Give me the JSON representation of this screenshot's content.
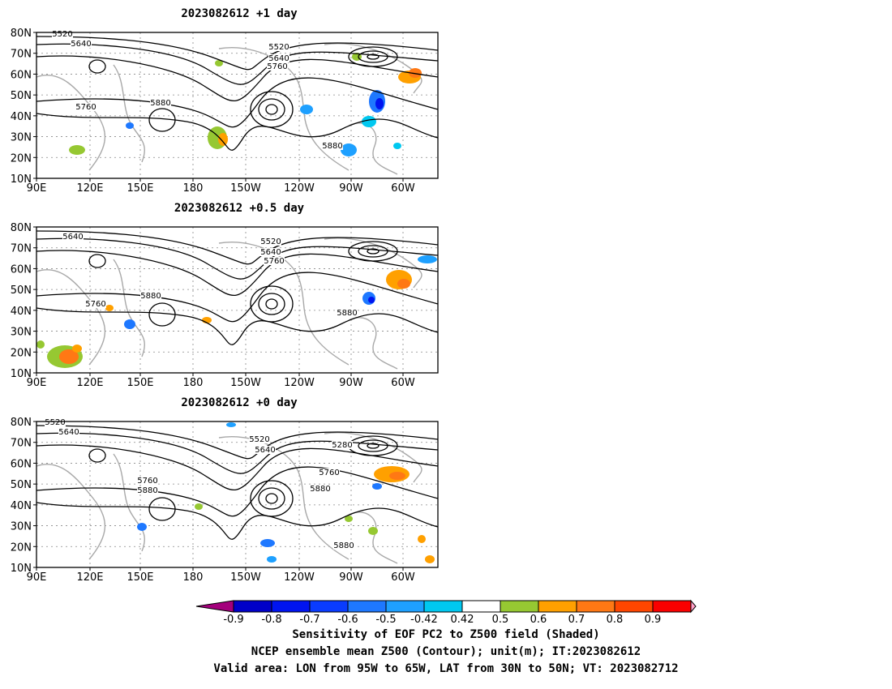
{
  "panels": [
    {
      "title": "2023082612  +1 day",
      "contour_labels": [
        "5520",
        "5640",
        "5520",
        "5640",
        "5760",
        "5760",
        "5880",
        "5880"
      ],
      "lat_ticks": [
        "80N",
        "70N",
        "60N",
        "50N",
        "40N",
        "30N",
        "20N",
        "10N"
      ],
      "lon_ticks": [
        "90E",
        "120E",
        "150E",
        "180",
        "150W",
        "120W",
        "90W",
        "60W"
      ]
    },
    {
      "title": "2023082612  +0.5 day",
      "contour_labels": [
        "5640",
        "5520",
        "5640",
        "5760",
        "5760",
        "5880",
        "5880"
      ],
      "lat_ticks": [
        "80N",
        "70N",
        "60N",
        "50N",
        "40N",
        "30N",
        "20N",
        "10N"
      ],
      "lon_ticks": [
        "90E",
        "120E",
        "150E",
        "180",
        "150W",
        "120W",
        "90W",
        "60W"
      ]
    },
    {
      "title": "2023082612  +0 day",
      "contour_labels": [
        "5520",
        "5640",
        "5520",
        "5640",
        "5280",
        "5760",
        "5760",
        "5880",
        "5880",
        "5880"
      ],
      "lat_ticks": [
        "80N",
        "70N",
        "60N",
        "50N",
        "40N",
        "30N",
        "20N",
        "10N"
      ],
      "lon_ticks": [
        "90E",
        "120E",
        "150E",
        "180",
        "150W",
        "120W",
        "90W",
        "60W"
      ]
    }
  ],
  "colorbar": {
    "tick_labels": [
      "-0.9",
      "-0.8",
      "-0.7",
      "-0.6",
      "-0.5",
      "-0.42",
      "0.42",
      "0.5",
      "0.6",
      "0.7",
      "0.8",
      "0.9"
    ],
    "colors": [
      "#a4007c",
      "#0000c8",
      "#0014f0",
      "#0a3cff",
      "#1e78ff",
      "#1ea0ff",
      "#00c8f0",
      "#ffffff",
      "#96c832",
      "#ffa000",
      "#ff7814",
      "#ff4600",
      "#fa0000",
      "#ffa0c8"
    ]
  },
  "footer": {
    "line1": "Sensitivity of EOF PC2 to Z500 field (Shaded)",
    "line2": "NCEP ensemble mean Z500 (Contour); unit(m); IT:2023082612",
    "line3": "Valid area: LON from 95W to 65W, LAT from 30N to 50N; VT: 2023082712"
  }
}
